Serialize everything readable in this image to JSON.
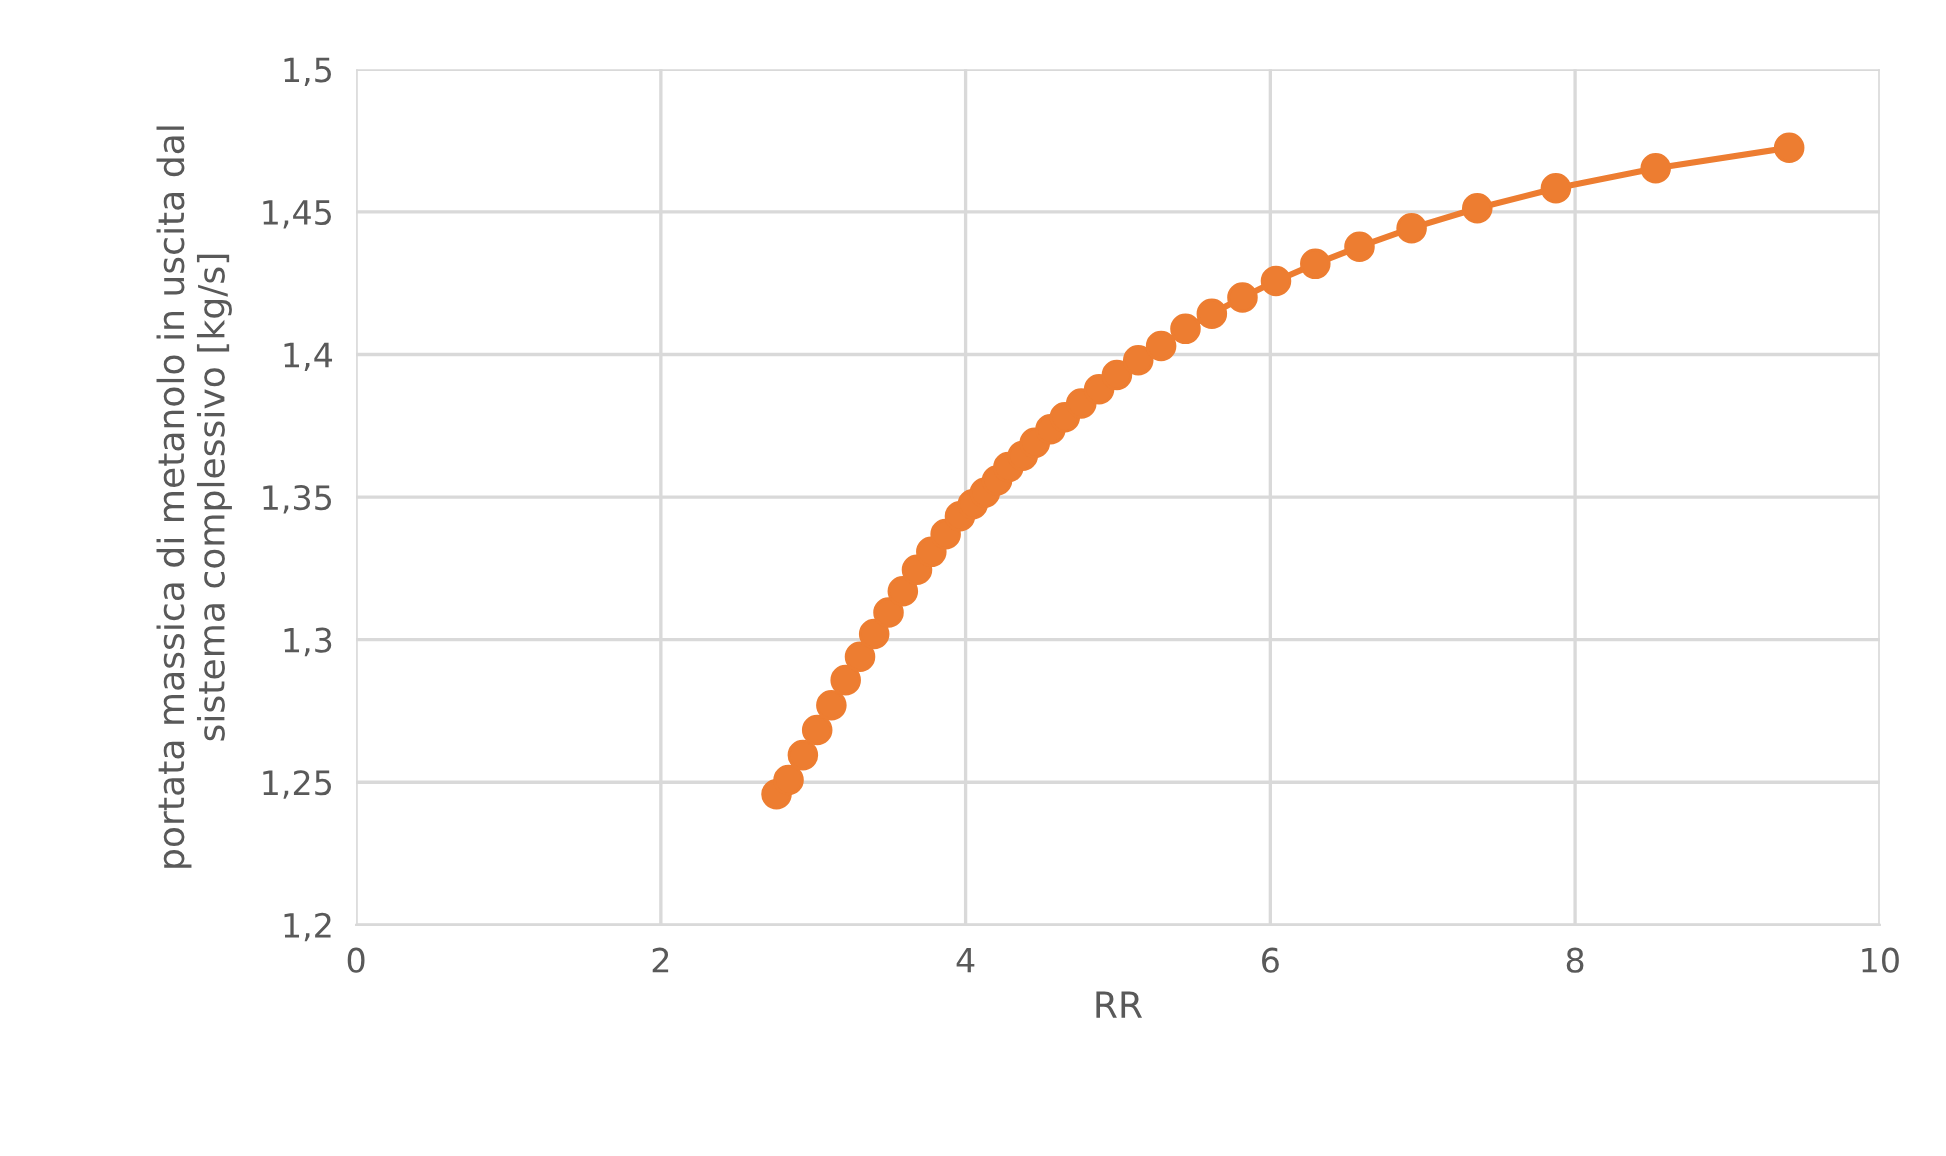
{
  "chart_data": {
    "type": "line",
    "xlabel": "RR",
    "ylabel": "portata massica di metanolo in uscita dal\nsistema complessivo [kg/s]",
    "series": [
      {
        "color": "#ed7d31",
        "x": [
          2.759,
          2.838,
          2.932,
          3.026,
          3.119,
          3.213,
          3.307,
          3.4,
          3.494,
          3.588,
          3.681,
          3.775,
          3.869,
          3.963,
          4.047,
          4.126,
          4.206,
          4.281,
          4.375,
          4.454,
          4.557,
          4.651,
          4.759,
          4.876,
          4.993,
          5.133,
          5.283,
          5.443,
          5.616,
          5.817,
          6.037,
          6.295,
          6.585,
          6.927,
          7.358,
          7.874,
          8.529,
          9.405
        ],
        "values": [
          1.2458,
          1.2508,
          1.2595,
          1.2683,
          1.277,
          1.2858,
          1.294,
          1.302,
          1.3095,
          1.317,
          1.3245,
          1.3308,
          1.337,
          1.3433,
          1.3475,
          1.3515,
          1.3558,
          1.3605,
          1.3645,
          1.369,
          1.3738,
          1.378,
          1.3828,
          1.3878,
          1.3928,
          1.398,
          1.403,
          1.409,
          1.4143,
          1.42,
          1.4258,
          1.4318,
          1.4378,
          1.4443,
          1.4513,
          1.4583,
          1.4653,
          1.4725
        ]
      }
    ],
    "xlim": [
      0,
      10
    ],
    "xticks": [
      0,
      2,
      4,
      6,
      8,
      10
    ],
    "ylim": [
      1.2,
      1.5
    ],
    "yticks": [
      {
        "value": 1.2,
        "label": "1,2"
      },
      {
        "value": 1.25,
        "label": "1,25"
      },
      {
        "value": 1.3,
        "label": "1,3"
      },
      {
        "value": 1.35,
        "label": "1,35"
      },
      {
        "value": 1.4,
        "label": "1,4"
      },
      {
        "value": 1.45,
        "label": "1,45"
      },
      {
        "value": 1.5,
        "label": "1,5"
      }
    ],
    "grid": true,
    "marker": "circle",
    "line_style": "solid"
  }
}
